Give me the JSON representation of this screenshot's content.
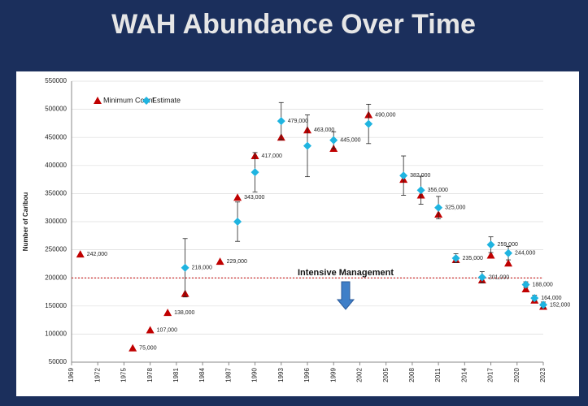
{
  "chart_data": {
    "type": "scatter",
    "title": "WAH Abundance Over Time",
    "ylabel": "Number of Caribou",
    "xlim": [
      1969,
      2023
    ],
    "xticks": [
      1969,
      1972,
      1975,
      1978,
      1981,
      1984,
      1987,
      1990,
      1993,
      1996,
      1999,
      2002,
      2005,
      2008,
      2011,
      2014,
      2017,
      2020,
      2023
    ],
    "ylim": [
      50000,
      550000
    ],
    "yticks": [
      50000,
      100000,
      150000,
      200000,
      250000,
      300000,
      350000,
      400000,
      450000,
      500000,
      550000
    ],
    "grid": true,
    "legend": "top-left",
    "reference_line": {
      "value": 200000,
      "label": "Intensive Management",
      "color": "#c00000"
    },
    "series": [
      {
        "name": "Minimum Count",
        "color": "#c00000",
        "marker": "triangle",
        "x": [
          1970,
          1976,
          1978,
          1980,
          1982,
          1986,
          1988,
          1990,
          1993,
          1996,
          1999,
          2003,
          2007,
          2009,
          2011,
          2013,
          2016,
          2017,
          2019,
          2021,
          2022,
          2023
        ],
        "values": [
          242000,
          75000,
          107000,
          138000,
          172000,
          229000,
          343000,
          417000,
          450000,
          463000,
          430000,
          490000,
          375000,
          347000,
          313000,
          232000,
          196000,
          240000,
          226000,
          180000,
          160000,
          149000
        ],
        "value_labels": [
          "242,000",
          "75,000",
          "107,000",
          "138,000",
          null,
          "229,000",
          "343,000",
          "417,000",
          null,
          "463,000",
          null,
          "490,000",
          null,
          null,
          null,
          null,
          null,
          null,
          null,
          null,
          null,
          null
        ]
      },
      {
        "name": "Estimate",
        "color": "#1fb4e0",
        "marker": "diamond",
        "x": [
          1982,
          1988,
          1990,
          1993,
          1996,
          1999,
          2003,
          2007,
          2009,
          2011,
          2013,
          2016,
          2017,
          2019,
          2021,
          2022,
          2023
        ],
        "values": [
          218000,
          300000,
          388000,
          479000,
          435000,
          445000,
          474000,
          382000,
          356000,
          325000,
          235000,
          201000,
          259000,
          244000,
          188000,
          164000,
          152000
        ],
        "errors": [
          52000,
          35000,
          35000,
          33000,
          55000,
          15000,
          35000,
          35000,
          25000,
          20000,
          8000,
          10000,
          14000,
          12000,
          5000,
          5000,
          5000
        ],
        "value_labels": [
          "218,000",
          null,
          null,
          "479,000",
          null,
          "445,000",
          null,
          "382,000",
          "356,000",
          "325,000",
          "235,000",
          "201,000",
          "259,000",
          "244,000",
          "188,000",
          "164,000",
          "152,000"
        ]
      }
    ]
  }
}
